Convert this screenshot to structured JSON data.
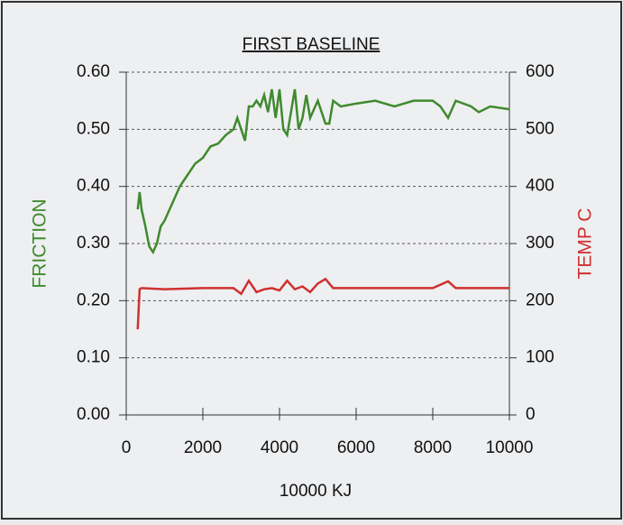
{
  "chart_data": {
    "type": "line",
    "title": "FIRST BASELINE",
    "xlabel": "10000 KJ",
    "ylabel": "FRICTION",
    "y2label": "TEMP C",
    "xlim": [
      0,
      10000
    ],
    "xticks": [
      0,
      2000,
      4000,
      6000,
      8000,
      10000
    ],
    "ylim": [
      0,
      0.6
    ],
    "yticks": [
      {
        "value": 0,
        "label": "0.00"
      },
      {
        "value": 0.1,
        "label": "0.10"
      },
      {
        "value": 0.2,
        "label": "0.20"
      },
      {
        "value": 0.3,
        "label": "0.30"
      },
      {
        "value": 0.4,
        "label": "0.40"
      },
      {
        "value": 0.5,
        "label": "0.50"
      },
      {
        "value": 0.6,
        "label": "0.60"
      }
    ],
    "y2lim": [
      0,
      600
    ],
    "y2ticks": [
      0,
      100,
      200,
      300,
      400,
      500,
      600
    ],
    "grid": true,
    "series": [
      {
        "name": "FRICTION",
        "color": "#3f8a2e",
        "x": [
          300,
          350,
          400,
          500,
          600,
          700,
          800,
          900,
          1000,
          1200,
          1400,
          1600,
          1800,
          2000,
          2200,
          2400,
          2600,
          2800,
          2900,
          3000,
          3100,
          3200,
          3300,
          3400,
          3500,
          3600,
          3700,
          3800,
          3900,
          4000,
          4100,
          4200,
          4300,
          4400,
          4500,
          4600,
          4700,
          4800,
          5000,
          5200,
          5300,
          5400,
          5600,
          6000,
          6500,
          7000,
          7500,
          8000,
          8200,
          8400,
          8600,
          9000,
          9200,
          9500,
          10000
        ],
        "values": [
          0.36,
          0.39,
          0.36,
          0.33,
          0.295,
          0.285,
          0.3,
          0.33,
          0.34,
          0.37,
          0.4,
          0.42,
          0.44,
          0.45,
          0.47,
          0.475,
          0.49,
          0.5,
          0.52,
          0.5,
          0.48,
          0.54,
          0.54,
          0.55,
          0.54,
          0.56,
          0.53,
          0.57,
          0.52,
          0.57,
          0.5,
          0.49,
          0.53,
          0.57,
          0.5,
          0.52,
          0.56,
          0.52,
          0.55,
          0.51,
          0.51,
          0.55,
          0.54,
          0.545,
          0.55,
          0.54,
          0.55,
          0.55,
          0.54,
          0.52,
          0.55,
          0.54,
          0.53,
          0.54,
          0.535
        ]
      },
      {
        "name": "TEMP C",
        "color": "#d03030",
        "axis": "y2",
        "x": [
          300,
          350,
          400,
          1000,
          2000,
          2800,
          3000,
          3200,
          3400,
          3600,
          3800,
          4000,
          4200,
          4400,
          4600,
          4800,
          5000,
          5200,
          5400,
          6000,
          7000,
          8000,
          8400,
          8600,
          9000,
          10000
        ],
        "values": [
          150,
          220,
          222,
          220,
          222,
          222,
          212,
          235,
          215,
          220,
          222,
          218,
          235,
          220,
          225,
          215,
          230,
          238,
          222,
          222,
          222,
          222,
          234,
          222,
          222,
          222
        ]
      }
    ]
  }
}
